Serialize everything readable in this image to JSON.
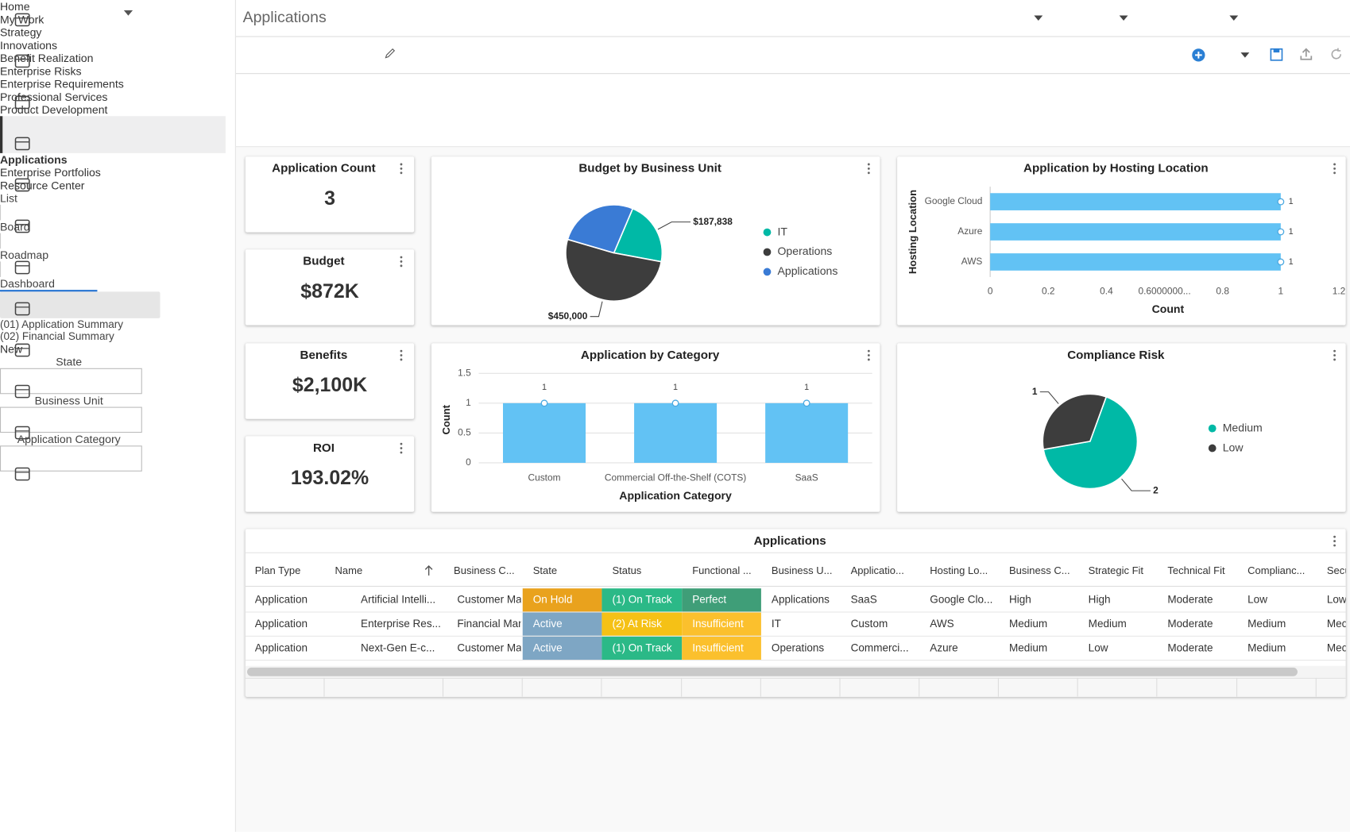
{
  "sidebar": {
    "items": [
      "Home",
      "My Work",
      "Strategy",
      "Innovations",
      "Benefit Realization",
      "Enterprise Risks",
      "Enterprise Requirements",
      "Professional Services",
      "Product Development",
      "Applications",
      "Enterprise Portfolios",
      "Resource Center"
    ]
  },
  "header": {
    "title": "Applications",
    "views": [
      "List",
      "Board",
      "Roadmap",
      "Dashboard"
    ]
  },
  "tabs": [
    "(01) Application Summary",
    "(02) Financial Summary"
  ],
  "toolbar": {
    "new": "New"
  },
  "filters": [
    "State",
    "Business Unit",
    "Application Category"
  ],
  "kpis": [
    {
      "title": "Application Count",
      "value": "3"
    },
    {
      "title": "Budget",
      "value": "$872K"
    },
    {
      "title": "Benefits",
      "value": "$2,100K"
    },
    {
      "title": "ROI",
      "value": "193.02%"
    }
  ],
  "chart_data": [
    {
      "type": "pie",
      "title": "Budget by Business Unit",
      "categories": [
        "IT",
        "Operations",
        "Applications"
      ],
      "values": [
        187838,
        450000,
        234162
      ],
      "value_labels": [
        "$187,838",
        "$450,000",
        null
      ],
      "colors": [
        "#00b9a6",
        "#3d3d3d",
        "#3a7bd5"
      ]
    },
    {
      "type": "bar",
      "orientation": "horizontal",
      "title": "Application by Hosting Location",
      "categories": [
        "Google Cloud",
        "Azure",
        "AWS"
      ],
      "values": [
        1,
        1,
        1
      ],
      "color": "#62c2f4",
      "x_label": "Count",
      "y_label": "Hosting Location",
      "xlim": [
        0,
        1.2
      ],
      "xticks": [
        0,
        0.2,
        0.4,
        {
          "value": 0.6,
          "label": "0.6000000..."
        },
        0.8,
        1,
        1.2
      ]
    },
    {
      "type": "bar",
      "orientation": "vertical",
      "title": "Application by Category",
      "categories": [
        "Custom",
        "Commercial Off-the-Shelf (COTS)",
        "SaaS"
      ],
      "values": [
        1,
        1,
        1
      ],
      "color": "#62c2f4",
      "x_label": "Application Category",
      "y_label": "Count",
      "ylim": [
        0,
        1.5
      ],
      "yticks": [
        0,
        0.5,
        1,
        1.5
      ],
      "grid": true
    },
    {
      "type": "pie",
      "title": "Compliance Risk",
      "categories": [
        "Medium",
        "Low"
      ],
      "values": [
        2,
        1
      ],
      "colors": [
        "#00b9a6",
        "#3d3d3d"
      ]
    }
  ],
  "table": {
    "title": "Applications",
    "columns": [
      "Plan Type",
      "Name",
      "Business C...",
      "State",
      "Status",
      "Functional ...",
      "Business U...",
      "Applicatio...",
      "Hosting Lo...",
      "Business C...",
      "Strategic Fit",
      "Technical Fit",
      "Complianc...",
      "Secu"
    ],
    "rows": [
      [
        "Application",
        "Artificial Intelli...",
        "Customer Mar",
        {
          "text": "On Hold",
          "color": "#e9a21d"
        },
        {
          "text": "(1) On Track",
          "color": "#2bb987"
        },
        {
          "text": "Perfect",
          "color": "#3f9e78"
        },
        "Applications",
        "SaaS",
        "Google Clo...",
        "High",
        "High",
        "Moderate",
        "Low",
        "Low"
      ],
      [
        "Application",
        "Enterprise Res...",
        "Financial Mana",
        {
          "text": "Active",
          "color": "#7ea6c4"
        },
        {
          "text": "(2) At Risk",
          "color": "#f5c116"
        },
        {
          "text": "Insufficient",
          "color": "#fbc02d"
        },
        "IT",
        "Custom",
        "AWS",
        "Medium",
        "Medium",
        "Moderate",
        "Medium",
        "Mec"
      ],
      [
        "Application",
        "Next-Gen E-c...",
        "Customer Mar",
        {
          "text": "Active",
          "color": "#7ea6c4"
        },
        {
          "text": "(1) On Track",
          "color": "#2bb987"
        },
        {
          "text": "Insufficient",
          "color": "#fbc02d"
        },
        "Operations",
        "Commerci...",
        "Azure",
        "Medium",
        "Low",
        "Moderate",
        "Medium",
        "Mec"
      ]
    ]
  }
}
